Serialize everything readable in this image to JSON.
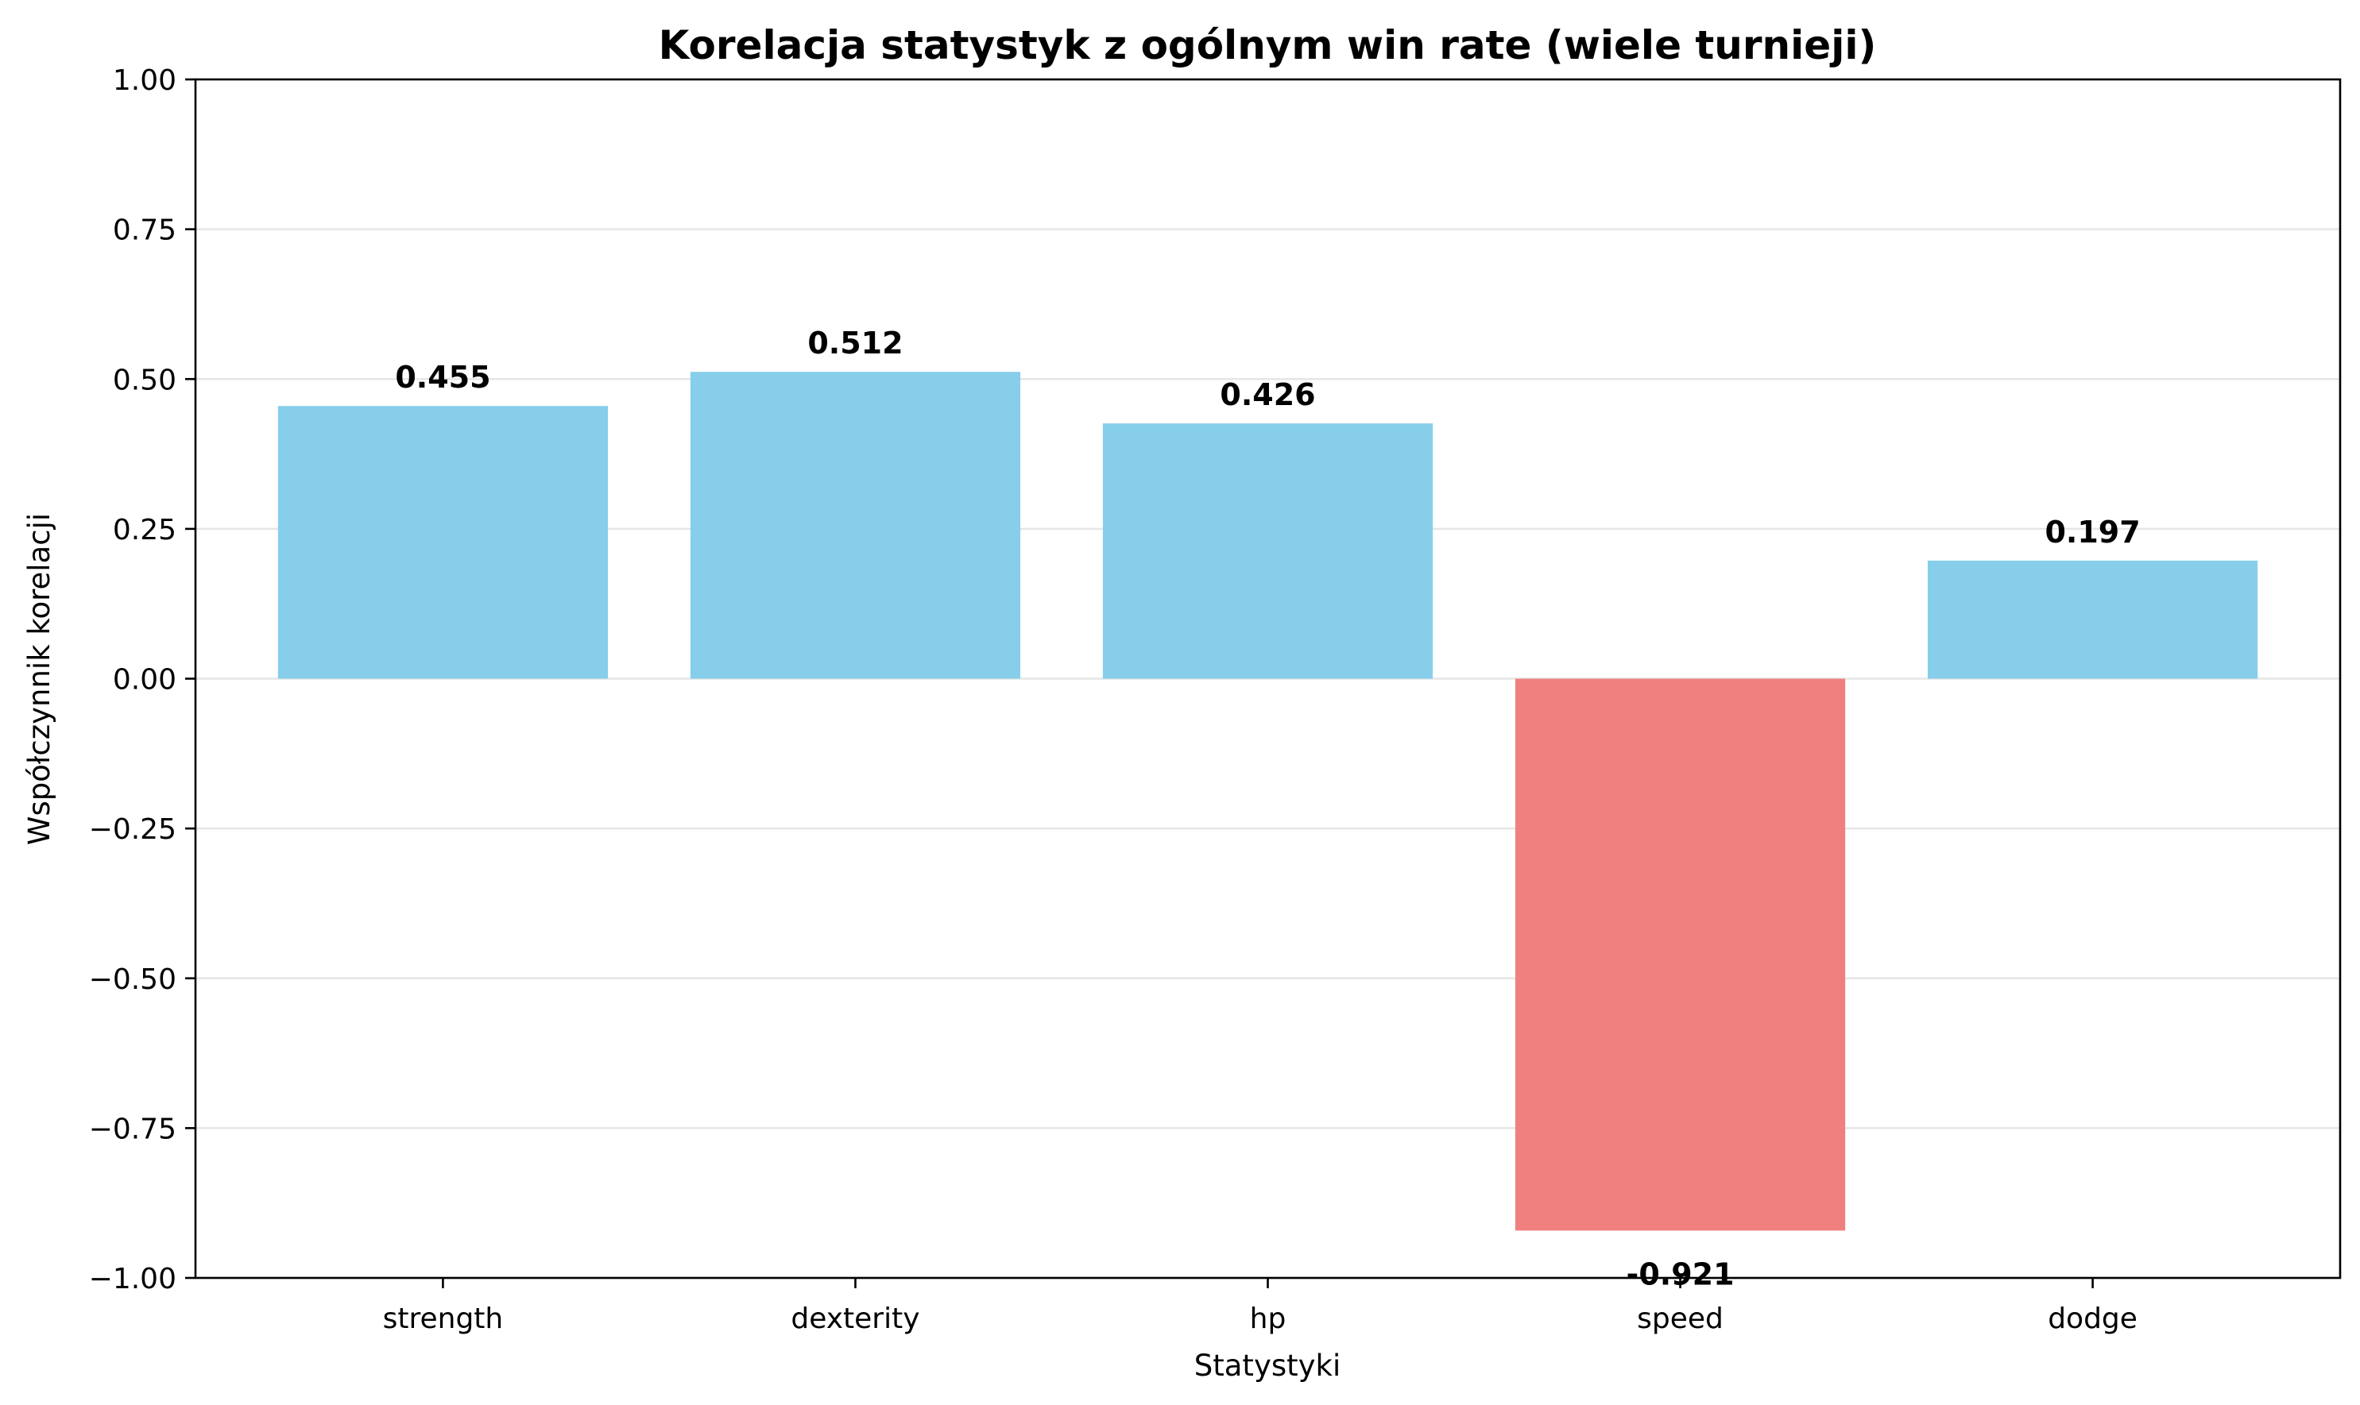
{
  "chart_data": {
    "type": "bar",
    "title": "Korelacja statystyk z ogólnym win rate (wiele turnieji)",
    "xlabel": "Statystyki",
    "ylabel": "Współczynnik korelacji",
    "categories": [
      "strength",
      "dexterity",
      "hp",
      "speed",
      "dodge"
    ],
    "values": [
      0.455,
      0.512,
      0.426,
      -0.921,
      0.197
    ],
    "value_labels": [
      "0.455",
      "0.512",
      "0.426",
      "-0.921",
      "0.197"
    ],
    "ylim": [
      -1.0,
      1.0
    ],
    "yticks": [
      -1.0,
      -0.75,
      -0.5,
      -0.25,
      0.0,
      0.25,
      0.5,
      0.75,
      1.0
    ],
    "ytick_labels": [
      "−1.00",
      "−0.75",
      "−0.50",
      "−0.25",
      "0.00",
      "0.25",
      "0.50",
      "0.75",
      "1.00"
    ],
    "grid": "y",
    "legend": "none",
    "colors": {
      "positive": "#87ceeb",
      "negative": "#f08080"
    }
  }
}
